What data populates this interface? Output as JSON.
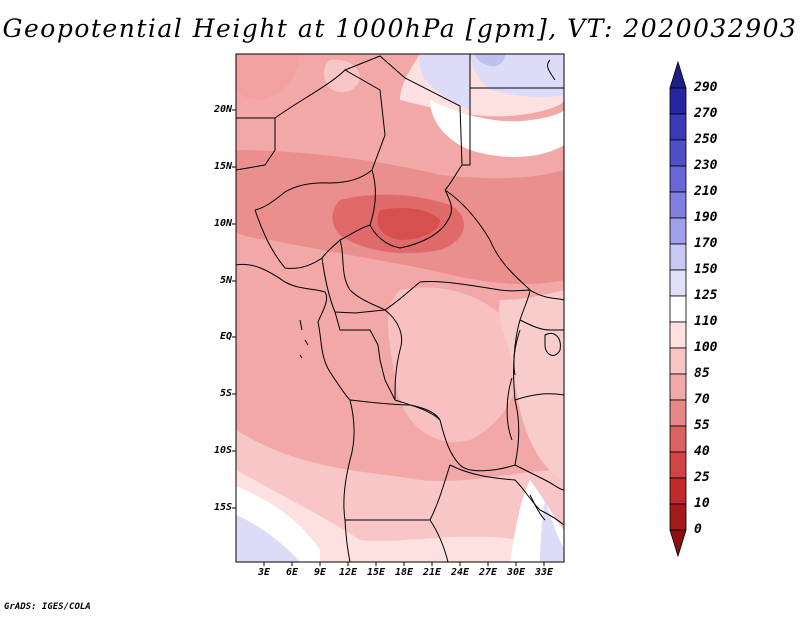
{
  "title": "Geopotential Height at 1000hPa [gpm], VT: 2020032903",
  "credit": "GrADS: IGES/COLA",
  "map": {
    "variable": "Geopotential Height",
    "level": "1000hPa",
    "units": "gpm",
    "valid_time": "2020032903",
    "lat_ticks": [
      "20N",
      "15N",
      "10N",
      "5N",
      "EQ",
      "5S",
      "10S",
      "15S"
    ],
    "lon_ticks": [
      "3E",
      "6E",
      "9E",
      "12E",
      "15E",
      "18E",
      "21E",
      "24E",
      "27E",
      "30E",
      "33E"
    ]
  },
  "colorbar": {
    "levels": [
      "290",
      "270",
      "250",
      "230",
      "210",
      "190",
      "170",
      "150",
      "125",
      "110",
      "100",
      "85",
      "70",
      "55",
      "40",
      "25",
      "10",
      "0"
    ],
    "colors": [
      "#1e1e8a",
      "#2626a3",
      "#3a3ab8",
      "#4f4fc8",
      "#6666d6",
      "#8080e0",
      "#a0a0ea",
      "#c8c8f4",
      "#e0e0fa",
      "#ffffff",
      "#fde0e0",
      "#f8c4c4",
      "#f0a8a8",
      "#e68888",
      "#dc6262",
      "#d24444",
      "#c02a2a",
      "#a51a1a",
      "#8a1010"
    ]
  }
}
